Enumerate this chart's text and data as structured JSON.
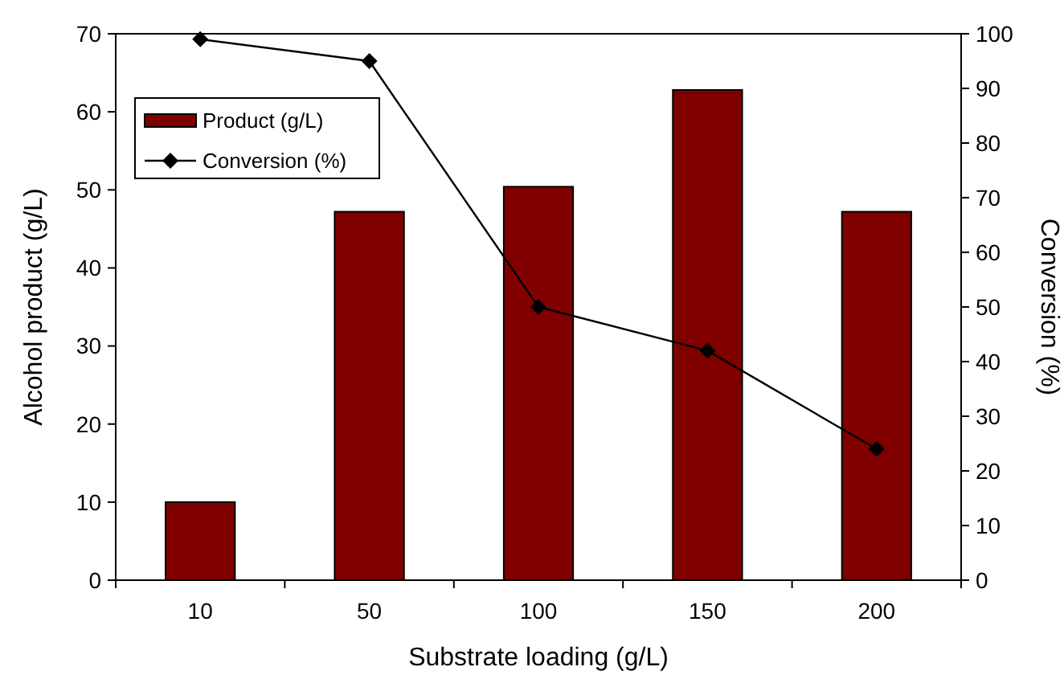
{
  "chart_data": {
    "type": "bar",
    "xlabel": "Substrate loading (g/L)",
    "ylabel": "Alcohol product (g/L)",
    "y2label": "Conversion (%)",
    "categories": [
      "10",
      "50",
      "100",
      "150",
      "200"
    ],
    "series": [
      {
        "name": "Product (g/L)",
        "color": "#800000",
        "values": [
          10,
          47.2,
          50.4,
          62.8,
          47.2
        ]
      },
      {
        "name": "Conversion (%)",
        "type": "line",
        "axis": "y2",
        "color": "#000000",
        "marker": "diamond",
        "values": [
          99,
          95,
          50,
          42,
          24
        ]
      }
    ],
    "ylim": [
      0,
      70
    ],
    "yticks": [
      0,
      10,
      20,
      30,
      40,
      50,
      60,
      70
    ],
    "y2lim": [
      0,
      100
    ],
    "y2ticks": [
      0,
      10,
      20,
      30,
      40,
      50,
      60,
      70,
      80,
      90,
      100
    ],
    "grid": false,
    "legend": "top left"
  }
}
